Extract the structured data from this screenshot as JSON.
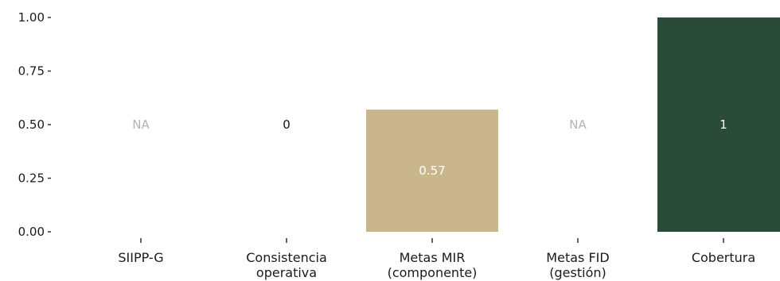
{
  "chart_data": {
    "type": "bar",
    "categories": [
      [
        "SIIPP-G"
      ],
      [
        "Consistencia",
        "operativa"
      ],
      [
        "Metas MIR",
        "(componente)"
      ],
      [
        "Metas FID",
        "(gestión)"
      ],
      [
        "Cobertura"
      ]
    ],
    "values": [
      null,
      0,
      0.57,
      null,
      1
    ],
    "data_labels": [
      "NA",
      "0",
      "0.57",
      "NA",
      "1"
    ],
    "bar_colors": [
      "#c9b68c",
      "#c9b68c",
      "#c9b68c",
      "#c9b68c",
      "#2b4b39"
    ],
    "label_colors": [
      "#b3b3b3",
      "#111111",
      "#ffffff",
      "#b3b3b3",
      "#ffffff"
    ],
    "ylim": [
      0,
      1
    ],
    "yticks": [
      0,
      0.25,
      0.5,
      0.75,
      1
    ],
    "ytick_labels": [
      "0.00",
      "0.25",
      "0.50",
      "0.75",
      "1.00"
    ],
    "label_position": "middle",
    "grid": false,
    "title": "",
    "xlabel": "",
    "ylabel": ""
  }
}
